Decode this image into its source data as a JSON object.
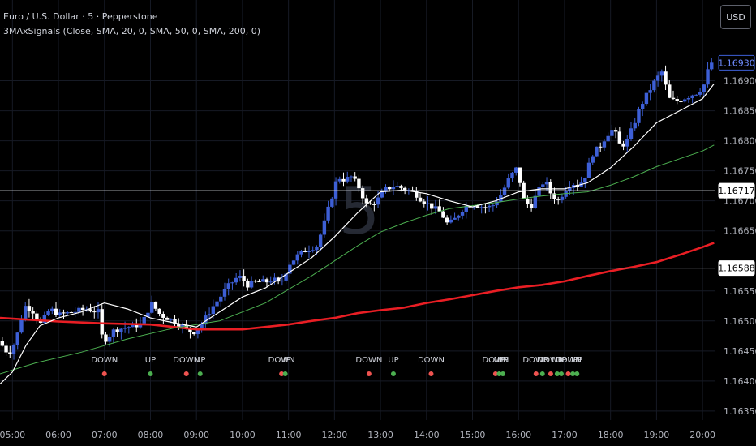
{
  "header": {
    "title": "Euro / U.S. Dollar · 5 · Pepperstone",
    "indicator": "3MAxSignals (Close, SMA, 20, 0, SMA, 50, 0, SMA, 200, 0)"
  },
  "currency_button": "USD",
  "watermark": "5",
  "colors": {
    "background": "#000000",
    "bull": "#3d5fd6",
    "bear": "#ffffff",
    "sma20": "#ffffff",
    "sma50": "#4caf50",
    "sma200": "#e91e24",
    "signal_up": "#4caf50",
    "signal_down": "#ef5350"
  },
  "chart_data": {
    "type": "candlestick",
    "ylim": [
      1.16335,
      1.16975
    ],
    "y_ticks": [
      "1.16900",
      "1.16850",
      "1.16800",
      "1.16750",
      "1.16700",
      "1.16650",
      "1.16550",
      "1.16500",
      "1.16450",
      "1.16400",
      "1.16350"
    ],
    "x_ticks": [
      "05:00",
      "06:00",
      "07:00",
      "08:00",
      "09:00",
      "10:00",
      "11:00",
      "12:00",
      "13:00",
      "14:00",
      "15:00",
      "16:00",
      "17:00",
      "18:00",
      "19:00",
      "20:00"
    ],
    "x_tick_values": [
      5,
      6,
      7,
      8,
      9,
      10,
      11,
      12,
      13,
      14,
      15,
      16,
      17,
      18,
      19,
      20
    ],
    "x_range": [
      4.73,
      20.28
    ],
    "price_labels": [
      {
        "label": "1.16930",
        "value": 1.1693,
        "style": "current"
      },
      {
        "label": "1.16717",
        "value": 1.16717,
        "style": "line"
      },
      {
        "label": "1.16588",
        "value": 1.16588,
        "style": "line"
      }
    ],
    "sma20": [
      [
        4.73,
        1.16395
      ],
      [
        5.0,
        1.16415
      ],
      [
        5.3,
        1.1646
      ],
      [
        5.6,
        1.16492
      ],
      [
        6.0,
        1.16505
      ],
      [
        6.5,
        1.16515
      ],
      [
        7.0,
        1.1653
      ],
      [
        7.5,
        1.1652
      ],
      [
        8.0,
        1.16505
      ],
      [
        8.5,
        1.16497
      ],
      [
        9.0,
        1.1649
      ],
      [
        9.5,
        1.16515
      ],
      [
        10.0,
        1.1654
      ],
      [
        10.5,
        1.16555
      ],
      [
        11.0,
        1.1658
      ],
      [
        11.5,
        1.16605
      ],
      [
        12.0,
        1.1664
      ],
      [
        12.5,
        1.1668
      ],
      [
        13.0,
        1.16715
      ],
      [
        13.5,
        1.16718
      ],
      [
        14.0,
        1.16712
      ],
      [
        14.5,
        1.167
      ],
      [
        15.0,
        1.1669
      ],
      [
        15.5,
        1.167
      ],
      [
        16.0,
        1.16715
      ],
      [
        16.5,
        1.1672
      ],
      [
        17.0,
        1.1672
      ],
      [
        17.5,
        1.1673
      ],
      [
        18.0,
        1.16755
      ],
      [
        18.5,
        1.1679
      ],
      [
        19.0,
        1.1683
      ],
      [
        19.5,
        1.1685
      ],
      [
        20.0,
        1.1687
      ],
      [
        20.25,
        1.16895
      ]
    ],
    "sma50": [
      [
        4.73,
        1.16412
      ],
      [
        5.5,
        1.1643
      ],
      [
        6.5,
        1.16448
      ],
      [
        7.5,
        1.1647
      ],
      [
        8.5,
        1.16488
      ],
      [
        9.5,
        1.165
      ],
      [
        10.5,
        1.1653
      ],
      [
        11.5,
        1.16575
      ],
      [
        12.5,
        1.16625
      ],
      [
        13.0,
        1.16648
      ],
      [
        13.5,
        1.16663
      ],
      [
        14.0,
        1.16676
      ],
      [
        14.5,
        1.16687
      ],
      [
        15.0,
        1.16692
      ],
      [
        15.5,
        1.16697
      ],
      [
        16.0,
        1.16703
      ],
      [
        16.5,
        1.16708
      ],
      [
        17.0,
        1.16712
      ],
      [
        17.5,
        1.16715
      ],
      [
        18.0,
        1.16726
      ],
      [
        18.5,
        1.1674
      ],
      [
        19.0,
        1.16757
      ],
      [
        19.5,
        1.1677
      ],
      [
        20.0,
        1.16783
      ],
      [
        20.25,
        1.16793
      ]
    ],
    "sma200": [
      [
        4.73,
        1.16505
      ],
      [
        6.0,
        1.16499
      ],
      [
        7.0,
        1.16496
      ],
      [
        8.0,
        1.16494
      ],
      [
        9.0,
        1.16486
      ],
      [
        10.0,
        1.16486
      ],
      [
        10.5,
        1.1649
      ],
      [
        11.0,
        1.16494
      ],
      [
        11.5,
        1.165
      ],
      [
        12.0,
        1.16505
      ],
      [
        12.5,
        1.16513
      ],
      [
        13.0,
        1.16518
      ],
      [
        13.5,
        1.16522
      ],
      [
        14.0,
        1.1653
      ],
      [
        14.5,
        1.16536
      ],
      [
        15.0,
        1.16543
      ],
      [
        15.5,
        1.1655
      ],
      [
        16.0,
        1.16556
      ],
      [
        16.5,
        1.1656
      ],
      [
        17.0,
        1.16566
      ],
      [
        17.5,
        1.16575
      ],
      [
        18.0,
        1.16583
      ],
      [
        18.5,
        1.1659
      ],
      [
        19.0,
        1.16598
      ],
      [
        19.5,
        1.1661
      ],
      [
        20.0,
        1.16623
      ],
      [
        20.25,
        1.1663
      ]
    ],
    "signals": [
      {
        "x": 7.0,
        "label": "DOWN",
        "type": "down"
      },
      {
        "x": 8.0,
        "label": "UP",
        "type": "up"
      },
      {
        "x": 8.78,
        "label": "DOWN",
        "type": "down"
      },
      {
        "x": 9.08,
        "label": "UP",
        "type": "up"
      },
      {
        "x": 10.85,
        "label": "DOWN",
        "type": "down"
      },
      {
        "x": 10.93,
        "label": "UP",
        "type": "up"
      },
      {
        "x": 12.75,
        "label": "DOWN",
        "type": "down"
      },
      {
        "x": 13.28,
        "label": "UP",
        "type": "up"
      },
      {
        "x": 14.1,
        "label": "DOWN",
        "type": "down"
      },
      {
        "x": 15.5,
        "label": "DOWN",
        "type": "down"
      },
      {
        "x": 15.58,
        "label": "UP",
        "type": "up"
      },
      {
        "x": 15.66,
        "label": "UP",
        "type": "up"
      },
      {
        "x": 16.38,
        "label": "DOWN",
        "type": "down"
      },
      {
        "x": 16.52,
        "label": "UP",
        "type": "up"
      },
      {
        "x": 16.7,
        "label": "DOWN",
        "type": "down"
      },
      {
        "x": 16.84,
        "label": "UP",
        "type": "up"
      },
      {
        "x": 16.93,
        "label": "UP",
        "type": "up"
      },
      {
        "x": 17.08,
        "label": "DOWN",
        "type": "down"
      },
      {
        "x": 17.18,
        "label": "UP",
        "type": "up"
      },
      {
        "x": 17.27,
        "label": "UP",
        "type": "up"
      }
    ],
    "candle_anchors": [
      [
        4.75,
        1.1647
      ],
      [
        5.0,
        1.16445
      ],
      [
        5.15,
        1.16465
      ],
      [
        5.35,
        1.16525
      ],
      [
        5.5,
        1.1652
      ],
      [
        5.7,
        1.16495
      ],
      [
        5.9,
        1.1652
      ],
      [
        6.1,
        1.1651
      ],
      [
        6.4,
        1.16515
      ],
      [
        6.7,
        1.1652
      ],
      [
        6.95,
        1.16515
      ],
      [
        7.05,
        1.16465
      ],
      [
        7.3,
        1.16485
      ],
      [
        7.6,
        1.1649
      ],
      [
        7.9,
        1.16495
      ],
      [
        8.1,
        1.1653
      ],
      [
        8.3,
        1.1651
      ],
      [
        8.6,
        1.165
      ],
      [
        8.8,
        1.1649
      ],
      [
        9.0,
        1.1648
      ],
      [
        9.2,
        1.16495
      ],
      [
        9.4,
        1.1652
      ],
      [
        9.6,
        1.1654
      ],
      [
        9.8,
        1.1656
      ],
      [
        10.0,
        1.16575
      ],
      [
        10.2,
        1.1656
      ],
      [
        10.4,
        1.16565
      ],
      [
        10.6,
        1.16565
      ],
      [
        10.75,
        1.1657
      ],
      [
        10.9,
        1.1656
      ],
      [
        11.1,
        1.16595
      ],
      [
        11.3,
        1.1661
      ],
      [
        11.5,
        1.1662
      ],
      [
        11.7,
        1.16625
      ],
      [
        11.85,
        1.1666
      ],
      [
        12.0,
        1.167
      ],
      [
        12.15,
        1.1674
      ],
      [
        12.3,
        1.16735
      ],
      [
        12.45,
        1.1674
      ],
      [
        12.6,
        1.16725
      ],
      [
        12.8,
        1.1669
      ],
      [
        13.0,
        1.167
      ],
      [
        13.2,
        1.1672
      ],
      [
        13.4,
        1.16725
      ],
      [
        13.6,
        1.1672
      ],
      [
        13.8,
        1.16715
      ],
      [
        14.0,
        1.167
      ],
      [
        14.2,
        1.1669
      ],
      [
        14.4,
        1.1668
      ],
      [
        14.55,
        1.1666
      ],
      [
        14.7,
        1.1667
      ],
      [
        14.9,
        1.1669
      ],
      [
        15.1,
        1.16695
      ],
      [
        15.3,
        1.1669
      ],
      [
        15.5,
        1.1669
      ],
      [
        15.7,
        1.1671
      ],
      [
        15.9,
        1.1674
      ],
      [
        16.05,
        1.16755
      ],
      [
        16.2,
        1.167
      ],
      [
        16.35,
        1.1669
      ],
      [
        16.5,
        1.16715
      ],
      [
        16.65,
        1.16735
      ],
      [
        16.8,
        1.1671
      ],
      [
        16.95,
        1.167
      ],
      [
        17.1,
        1.1672
      ],
      [
        17.25,
        1.1673
      ],
      [
        17.4,
        1.16725
      ],
      [
        17.55,
        1.16745
      ],
      [
        17.7,
        1.1678
      ],
      [
        17.85,
        1.1679
      ],
      [
        18.0,
        1.1681
      ],
      [
        18.15,
        1.1682
      ],
      [
        18.3,
        1.1679
      ],
      [
        18.45,
        1.168
      ],
      [
        18.6,
        1.1683
      ],
      [
        18.75,
        1.1686
      ],
      [
        18.9,
        1.1688
      ],
      [
        19.05,
        1.169
      ],
      [
        19.2,
        1.16915
      ],
      [
        19.35,
        1.1687
      ],
      [
        19.5,
        1.16865
      ],
      [
        19.65,
        1.1687
      ],
      [
        19.8,
        1.16875
      ],
      [
        19.95,
        1.1688
      ],
      [
        20.1,
        1.1689
      ],
      [
        20.25,
        1.1693
      ]
    ]
  }
}
